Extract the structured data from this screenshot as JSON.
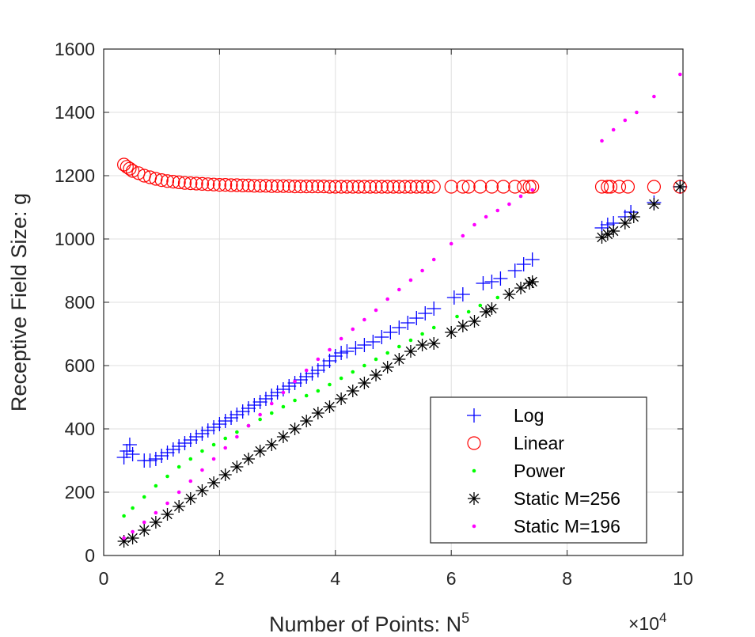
{
  "chart_data": {
    "type": "scatter",
    "title": "",
    "xlabel": "Number of Points: N",
    "xlabel_superscript": "5",
    "ylabel": "Receptive Field Size: g",
    "x_exponent_label": "×10",
    "x_exponent_power": "4",
    "xlim": [
      0,
      10
    ],
    "ylim": [
      0,
      1600
    ],
    "x_ticks": [
      0,
      2,
      4,
      6,
      8,
      10
    ],
    "x_tick_labels": [
      "0",
      "2",
      "4",
      "6",
      "8",
      "10"
    ],
    "y_ticks": [
      0,
      200,
      400,
      600,
      800,
      1000,
      1200,
      1400,
      1600
    ],
    "y_tick_labels": [
      "0",
      "200",
      "400",
      "600",
      "800",
      "1000",
      "1200",
      "1400",
      "1600"
    ],
    "grid": true,
    "legend_position": "bottom-right",
    "series": [
      {
        "name": "Log",
        "color": "#0000ff",
        "marker": "plus",
        "x": [
          0.35,
          0.4,
          0.45,
          0.5,
          0.7,
          0.8,
          0.9,
          1.0,
          1.1,
          1.2,
          1.3,
          1.4,
          1.5,
          1.6,
          1.7,
          1.8,
          1.9,
          2.0,
          2.1,
          2.2,
          2.3,
          2.4,
          2.5,
          2.6,
          2.7,
          2.8,
          2.9,
          3.0,
          3.1,
          3.2,
          3.3,
          3.4,
          3.5,
          3.6,
          3.7,
          3.8,
          3.9,
          4.0,
          4.1,
          4.2,
          4.35,
          4.5,
          4.65,
          4.8,
          4.95,
          5.1,
          5.25,
          5.4,
          5.55,
          5.7,
          6.05,
          6.2,
          6.55,
          6.7,
          6.85,
          7.1,
          7.25,
          7.4,
          8.6,
          8.7,
          8.8,
          9.0,
          9.1,
          9.5,
          9.95
        ],
        "y": [
          310,
          330,
          350,
          320,
          300,
          300,
          305,
          315,
          325,
          335,
          345,
          355,
          365,
          375,
          385,
          395,
          405,
          415,
          425,
          435,
          445,
          455,
          465,
          475,
          485,
          495,
          505,
          515,
          525,
          535,
          545,
          555,
          565,
          575,
          585,
          600,
          615,
          630,
          640,
          645,
          655,
          665,
          675,
          690,
          705,
          720,
          735,
          750,
          765,
          780,
          815,
          825,
          860,
          865,
          875,
          900,
          920,
          935,
          1035,
          1045,
          1050,
          1070,
          1085,
          1115,
          1165
        ]
      },
      {
        "name": "Linear",
        "color": "#ff0000",
        "marker": "circle",
        "x": [
          0.35,
          0.4,
          0.45,
          0.5,
          0.6,
          0.7,
          0.8,
          0.9,
          1.0,
          1.1,
          1.2,
          1.3,
          1.4,
          1.5,
          1.6,
          1.7,
          1.8,
          1.9,
          2.0,
          2.1,
          2.2,
          2.3,
          2.4,
          2.5,
          2.6,
          2.7,
          2.8,
          2.9,
          3.0,
          3.1,
          3.2,
          3.3,
          3.4,
          3.5,
          3.6,
          3.7,
          3.8,
          3.9,
          4.0,
          4.1,
          4.2,
          4.3,
          4.4,
          4.5,
          4.6,
          4.7,
          4.8,
          4.9,
          5.0,
          5.1,
          5.2,
          5.3,
          5.4,
          5.5,
          5.6,
          5.7,
          6.0,
          6.2,
          6.3,
          6.5,
          6.7,
          6.9,
          7.1,
          7.25,
          7.35,
          7.4,
          8.6,
          8.7,
          8.75,
          8.9,
          9.05,
          9.5,
          9.95
        ],
        "y": [
          1235,
          1228,
          1222,
          1215,
          1208,
          1200,
          1195,
          1190,
          1186,
          1183,
          1181,
          1179,
          1177,
          1176,
          1175,
          1174,
          1173,
          1172,
          1171,
          1171,
          1170,
          1170,
          1169,
          1169,
          1168,
          1168,
          1168,
          1167,
          1167,
          1167,
          1167,
          1166,
          1166,
          1166,
          1166,
          1166,
          1166,
          1165,
          1165,
          1165,
          1165,
          1165,
          1165,
          1165,
          1165,
          1165,
          1165,
          1165,
          1165,
          1165,
          1165,
          1165,
          1165,
          1165,
          1165,
          1165,
          1165,
          1165,
          1165,
          1165,
          1165,
          1165,
          1165,
          1165,
          1165,
          1165,
          1165,
          1165,
          1165,
          1165,
          1165,
          1165,
          1165
        ]
      },
      {
        "name": "Power",
        "color": "#00ff00",
        "marker": "dot",
        "x": [
          0.35,
          0.5,
          0.7,
          0.9,
          1.1,
          1.3,
          1.5,
          1.7,
          1.9,
          2.1,
          2.3,
          2.5,
          2.7,
          2.9,
          3.1,
          3.3,
          3.5,
          3.7,
          3.9,
          4.1,
          4.3,
          4.5,
          4.7,
          4.9,
          5.1,
          5.3,
          5.5,
          5.7,
          6.1,
          6.3,
          6.5,
          6.8
        ],
        "y": [
          125,
          150,
          185,
          220,
          250,
          280,
          305,
          330,
          350,
          370,
          390,
          410,
          430,
          450,
          470,
          490,
          505,
          520,
          540,
          560,
          580,
          600,
          620,
          640,
          660,
          680,
          700,
          720,
          755,
          770,
          790,
          815
        ]
      },
      {
        "name": "Static M=256",
        "color": "#000000",
        "marker": "asterisk",
        "x": [
          0.35,
          0.5,
          0.7,
          0.9,
          1.1,
          1.3,
          1.5,
          1.7,
          1.9,
          2.1,
          2.3,
          2.5,
          2.7,
          2.9,
          3.1,
          3.3,
          3.5,
          3.7,
          3.9,
          4.1,
          4.3,
          4.5,
          4.7,
          4.9,
          5.1,
          5.3,
          5.5,
          5.7,
          6.0,
          6.2,
          6.4,
          6.6,
          6.7,
          7.0,
          7.2,
          7.35,
          7.4,
          8.6,
          8.7,
          8.8,
          9.0,
          9.15,
          9.5,
          9.95
        ],
        "y": [
          45,
          55,
          80,
          105,
          130,
          155,
          180,
          205,
          230,
          255,
          280,
          305,
          330,
          350,
          375,
          400,
          425,
          450,
          470,
          495,
          520,
          545,
          570,
          595,
          620,
          645,
          665,
          670,
          705,
          725,
          740,
          770,
          780,
          825,
          845,
          860,
          865,
          1005,
          1015,
          1025,
          1050,
          1070,
          1110,
          1165
        ]
      },
      {
        "name": "Static M=196",
        "color": "#ff00ff",
        "marker": "dot",
        "x": [
          0.35,
          0.5,
          0.7,
          0.9,
          1.1,
          1.3,
          1.5,
          1.7,
          1.9,
          2.1,
          2.3,
          2.5,
          2.7,
          2.9,
          3.1,
          3.3,
          3.5,
          3.7,
          3.9,
          4.1,
          4.3,
          4.5,
          4.7,
          4.9,
          5.1,
          5.3,
          5.5,
          5.7,
          6.0,
          6.2,
          6.4,
          6.6,
          6.8,
          7.0,
          7.2,
          7.4,
          8.6,
          8.8,
          9.0,
          9.2,
          9.5,
          9.95
        ],
        "y": [
          55,
          75,
          105,
          135,
          165,
          200,
          235,
          270,
          305,
          340,
          375,
          410,
          445,
          480,
          515,
          550,
          585,
          620,
          650,
          685,
          715,
          745,
          775,
          810,
          840,
          870,
          900,
          935,
          985,
          1010,
          1045,
          1070,
          1090,
          1110,
          1135,
          1155,
          1310,
          1345,
          1375,
          1400,
          1450,
          1520
        ]
      }
    ]
  }
}
